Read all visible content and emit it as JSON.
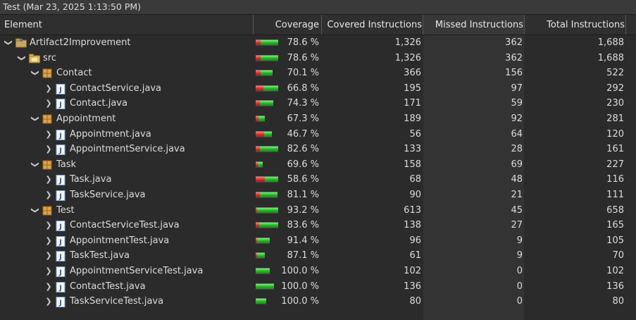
{
  "window": {
    "title": "Test (Mar 23, 2025 1:13:50 PM)"
  },
  "columns": {
    "element": "Element",
    "coverage": "Coverage",
    "covered": "Covered Instructions",
    "missed": "Missed Instructions",
    "total": "Total Instructions"
  },
  "colors": {
    "covered": "#22b022",
    "missed": "#d22a2a",
    "background": "#2b2b2b"
  },
  "rows": [
    {
      "label": "Artifact2Improvement",
      "level": 0,
      "icon": "project-icon",
      "expanded": true,
      "coverage": "78.6 %",
      "covered": "1,326",
      "missed": "362",
      "total": "1,688",
      "cov": 78.6,
      "bar": 1.0
    },
    {
      "label": "src",
      "level": 1,
      "icon": "source-folder-icon",
      "expanded": true,
      "coverage": "78.6 %",
      "covered": "1,326",
      "missed": "362",
      "total": "1,688",
      "cov": 78.6,
      "bar": 1.0
    },
    {
      "label": "Contact",
      "level": 2,
      "icon": "package-icon",
      "expanded": true,
      "coverage": "70.1 %",
      "covered": "366",
      "missed": "156",
      "total": "522",
      "cov": 70.1,
      "bar": 0.76
    },
    {
      "label": "ContactService.java",
      "level": 3,
      "icon": "java-file-icon",
      "expanded": false,
      "coverage": "66.8 %",
      "covered": "195",
      "missed": "97",
      "total": "292",
      "cov": 66.8,
      "bar": 1.0
    },
    {
      "label": "Contact.java",
      "level": 3,
      "icon": "java-file-icon",
      "expanded": false,
      "coverage": "74.3 %",
      "covered": "171",
      "missed": "59",
      "total": "230",
      "cov": 74.3,
      "bar": 0.79
    },
    {
      "label": "Appointment",
      "level": 2,
      "icon": "package-icon",
      "expanded": true,
      "coverage": "67.3 %",
      "covered": "189",
      "missed": "92",
      "total": "281",
      "cov": 67.3,
      "bar": 0.41
    },
    {
      "label": "Appointment.java",
      "level": 3,
      "icon": "java-file-icon",
      "expanded": false,
      "coverage": "46.7 %",
      "covered": "56",
      "missed": "64",
      "total": "120",
      "cov": 46.7,
      "bar": 0.72
    },
    {
      "label": "AppointmentService.java",
      "level": 3,
      "icon": "java-file-icon",
      "expanded": false,
      "coverage": "82.6 %",
      "covered": "133",
      "missed": "28",
      "total": "161",
      "cov": 82.6,
      "bar": 1.0
    },
    {
      "label": "Task",
      "level": 2,
      "icon": "package-icon",
      "expanded": true,
      "coverage": "69.6 %",
      "covered": "158",
      "missed": "69",
      "total": "227",
      "cov": 69.6,
      "bar": 0.3
    },
    {
      "label": "Task.java",
      "level": 3,
      "icon": "java-file-icon",
      "expanded": false,
      "coverage": "58.6 %",
      "covered": "68",
      "missed": "48",
      "total": "116",
      "cov": 58.6,
      "bar": 1.0
    },
    {
      "label": "TaskService.java",
      "level": 3,
      "icon": "java-file-icon",
      "expanded": false,
      "coverage": "81.1 %",
      "covered": "90",
      "missed": "21",
      "total": "111",
      "cov": 81.1,
      "bar": 0.96
    },
    {
      "label": "Test",
      "level": 2,
      "icon": "package-icon",
      "expanded": true,
      "coverage": "93.2 %",
      "covered": "613",
      "missed": "45",
      "total": "658",
      "cov": 93.2,
      "bar": 1.0
    },
    {
      "label": "ContactServiceTest.java",
      "level": 3,
      "icon": "java-file-icon",
      "expanded": false,
      "coverage": "83.6 %",
      "covered": "138",
      "missed": "27",
      "total": "165",
      "cov": 83.6,
      "bar": 1.0
    },
    {
      "label": "AppointmentTest.java",
      "level": 3,
      "icon": "java-file-icon",
      "expanded": false,
      "coverage": "91.4 %",
      "covered": "96",
      "missed": "9",
      "total": "105",
      "cov": 91.4,
      "bar": 0.64
    },
    {
      "label": "TaskTest.java",
      "level": 3,
      "icon": "java-file-icon",
      "expanded": false,
      "coverage": "87.1 %",
      "covered": "61",
      "missed": "9",
      "total": "70",
      "cov": 87.1,
      "bar": 0.42
    },
    {
      "label": "AppointmentServiceTest.java",
      "level": 3,
      "icon": "java-file-icon",
      "expanded": false,
      "coverage": "100.0 %",
      "covered": "102",
      "missed": "0",
      "total": "102",
      "cov": 100.0,
      "bar": 0.62
    },
    {
      "label": "ContactTest.java",
      "level": 3,
      "icon": "java-file-icon",
      "expanded": false,
      "coverage": "100.0 %",
      "covered": "136",
      "missed": "0",
      "total": "136",
      "cov": 100.0,
      "bar": 0.82
    },
    {
      "label": "TaskServiceTest.java",
      "level": 3,
      "icon": "java-file-icon",
      "expanded": false,
      "coverage": "100.0 %",
      "covered": "80",
      "missed": "0",
      "total": "80",
      "cov": 100.0,
      "bar": 0.48
    }
  ]
}
